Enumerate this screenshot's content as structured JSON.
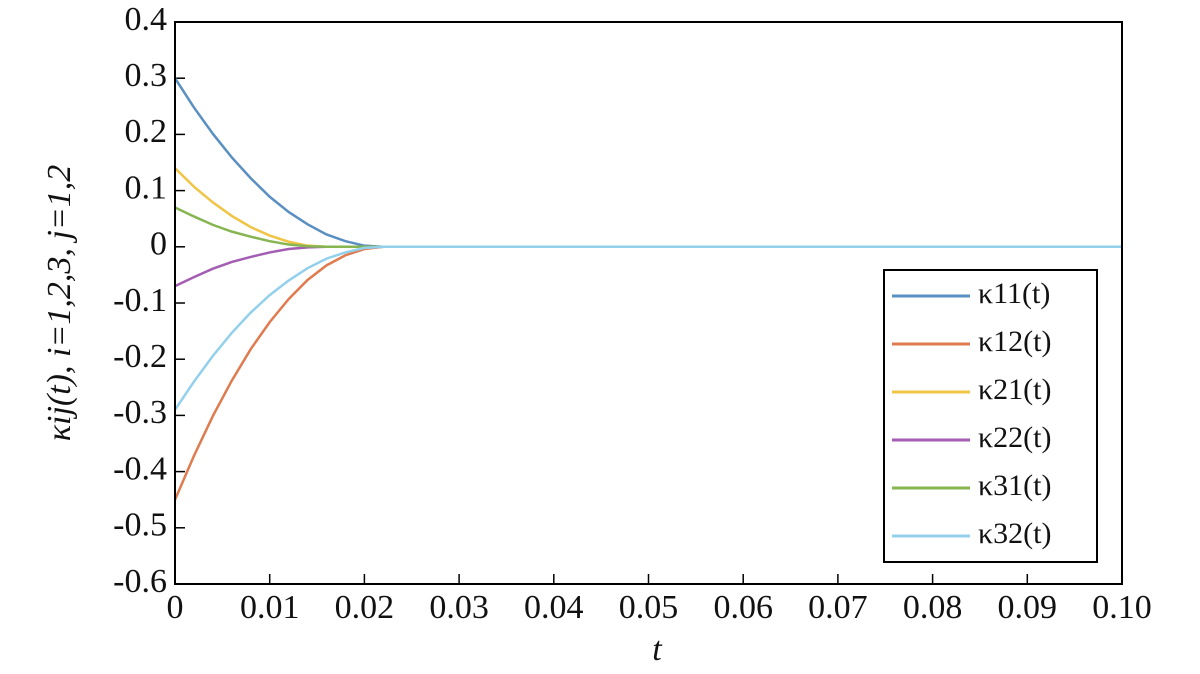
{
  "chart_data": {
    "type": "line",
    "x_label": "t",
    "y_label": "κij(t), i=1,2,3, j=1,2",
    "x": [
      0,
      0.002,
      0.004,
      0.006,
      0.008,
      0.01,
      0.012,
      0.014,
      0.016,
      0.018,
      0.02,
      0.022,
      0.1
    ],
    "series": [
      {
        "name": "κ11(t)",
        "color": "#5a8fc2",
        "values": [
          0.3,
          0.248,
          0.201,
          0.159,
          0.122,
          0.089,
          0.062,
          0.04,
          0.022,
          0.01,
          0.002,
          0,
          0
        ]
      },
      {
        "name": "κ12(t)",
        "color": "#e07b4f",
        "values": [
          -0.45,
          -0.372,
          -0.301,
          -0.238,
          -0.182,
          -0.134,
          -0.093,
          -0.059,
          -0.033,
          -0.015,
          -0.004,
          0,
          0
        ]
      },
      {
        "name": "κ21(t)",
        "color": "#f0c445",
        "values": [
          0.14,
          0.107,
          0.079,
          0.055,
          0.035,
          0.02,
          0.009,
          0.002,
          0,
          0,
          0,
          0,
          0
        ]
      },
      {
        "name": "κ22(t)",
        "color": "#a35db3",
        "values": [
          -0.07,
          -0.054,
          -0.039,
          -0.027,
          -0.018,
          -0.01,
          -0.004,
          -0.001,
          0,
          0,
          0,
          0,
          0
        ]
      },
      {
        "name": "κ31(t)",
        "color": "#86b552",
        "values": [
          0.07,
          0.054,
          0.039,
          0.027,
          0.018,
          0.01,
          0.004,
          0.001,
          0,
          0,
          0,
          0,
          0
        ]
      },
      {
        "name": "κ32(t)",
        "color": "#92d0ec",
        "values": [
          -0.29,
          -0.24,
          -0.194,
          -0.153,
          -0.117,
          -0.086,
          -0.06,
          -0.038,
          -0.021,
          -0.01,
          -0.002,
          0,
          0
        ]
      }
    ],
    "xlim": [
      0,
      0.1
    ],
    "xticks": [
      0,
      0.01,
      0.02,
      0.03,
      0.04,
      0.05,
      0.06,
      0.07,
      0.08,
      0.09,
      {
        "value": 0.1,
        "label": "0.10"
      }
    ],
    "ylim": [
      -0.6,
      0.4
    ],
    "yticks": [
      0.4,
      0.3,
      0.2,
      0.1,
      0,
      -0.1,
      -0.2,
      -0.3,
      -0.4,
      -0.5,
      -0.6
    ],
    "legend": "lower right",
    "grid": false
  }
}
